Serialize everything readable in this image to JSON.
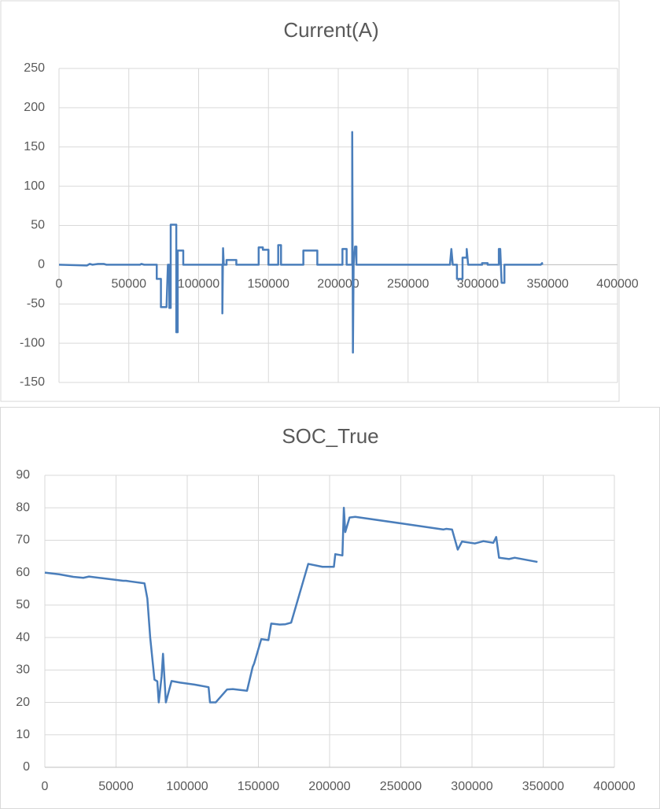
{
  "chart_data": [
    {
      "type": "line",
      "title": "Current(A)",
      "color": "#4a7ebb",
      "grid": true,
      "x": [
        0,
        20000,
        22000,
        24000,
        28000,
        32000,
        34000,
        58000,
        59000,
        61000,
        70000,
        70000,
        73000,
        73000,
        77000,
        78000,
        79000,
        79000,
        80000,
        80000,
        84000,
        84000,
        85000,
        85000,
        89000,
        89000,
        117000,
        117000,
        117500,
        118000,
        120000,
        120000,
        127000,
        127000,
        143000,
        143000,
        146000,
        146000,
        150000,
        150000,
        157000,
        157000,
        159000,
        159000,
        175000,
        175000,
        185000,
        185000,
        203000,
        203000,
        206000,
        206000,
        210000,
        210000,
        210500,
        211000,
        212000,
        213000,
        213000,
        280000,
        281000,
        282000,
        285000,
        285000,
        289000,
        289000,
        292000,
        292000,
        293000,
        303000,
        303000,
        307000,
        307000,
        315000,
        315000,
        316000,
        317000,
        319000,
        319000,
        345000,
        346000,
        346000
      ],
      "values": [
        0,
        -1,
        1,
        0,
        1,
        1,
        0,
        0,
        1,
        0,
        0,
        -18,
        -18,
        -54,
        -54,
        0,
        0,
        -55,
        -55,
        51,
        51,
        -86,
        -86,
        18,
        18,
        0,
        0,
        -62,
        21,
        0,
        0,
        6,
        6,
        0,
        0,
        22,
        22,
        19,
        19,
        0,
        0,
        25,
        25,
        0,
        0,
        18,
        18,
        0,
        0,
        20,
        20,
        0,
        0,
        169,
        -112,
        0,
        23,
        23,
        0,
        0,
        20,
        0,
        0,
        -18,
        -18,
        9,
        9,
        20,
        0,
        0,
        2,
        2,
        0,
        0,
        20,
        20,
        -23,
        -23,
        0,
        0,
        2,
        0
      ],
      "xlim": [
        0,
        400000
      ],
      "xticks": [
        0,
        50000,
        100000,
        150000,
        200000,
        250000,
        300000,
        350000,
        400000
      ],
      "ylim": [
        -150,
        250
      ],
      "yticks": [
        -150,
        -100,
        -50,
        0,
        50,
        100,
        150,
        200,
        250
      ]
    },
    {
      "type": "line",
      "title": "SOC_True",
      "color": "#4a7ebb",
      "grid": true,
      "x": [
        0,
        10000,
        20000,
        27000,
        31000,
        40000,
        55000,
        57000,
        60000,
        70000,
        72000,
        74000,
        77000,
        79000,
        80000,
        82000,
        83000,
        85000,
        89000,
        95000,
        105000,
        115000,
        116000,
        120000,
        128000,
        132000,
        142000,
        146000,
        147000,
        152000,
        157000,
        159000,
        165000,
        169000,
        173000,
        185000,
        195000,
        203000,
        204000,
        209000,
        210000,
        211000,
        214000,
        218000,
        250000,
        280000,
        282000,
        286000,
        290000,
        293000,
        302000,
        308000,
        315000,
        317000,
        319000,
        326000,
        330000,
        346000
      ],
      "values": [
        60,
        59.5,
        58.7,
        58.4,
        58.8,
        58.3,
        57.5,
        57.5,
        57.3,
        56.7,
        52,
        40,
        27,
        26.5,
        20,
        28,
        35,
        20,
        26.6,
        26.1,
        25.5,
        24.7,
        20,
        20,
        24,
        24.1,
        23.6,
        31,
        32,
        39.5,
        39.2,
        44.3,
        44,
        44.1,
        44.6,
        62.7,
        61.8,
        61.8,
        65.7,
        65.3,
        80,
        72.5,
        77,
        77.2,
        75.2,
        73.3,
        73.5,
        73.3,
        67.1,
        69.6,
        69,
        69.7,
        69.2,
        71,
        64.6,
        64.2,
        64.6,
        63.3
      ],
      "xlim": [
        0,
        400000
      ],
      "xticks": [
        0,
        50000,
        100000,
        150000,
        200000,
        250000,
        300000,
        350000,
        400000
      ],
      "ylim": [
        0,
        90
      ],
      "yticks": [
        0,
        10,
        20,
        30,
        40,
        50,
        60,
        70,
        80,
        90
      ]
    }
  ]
}
